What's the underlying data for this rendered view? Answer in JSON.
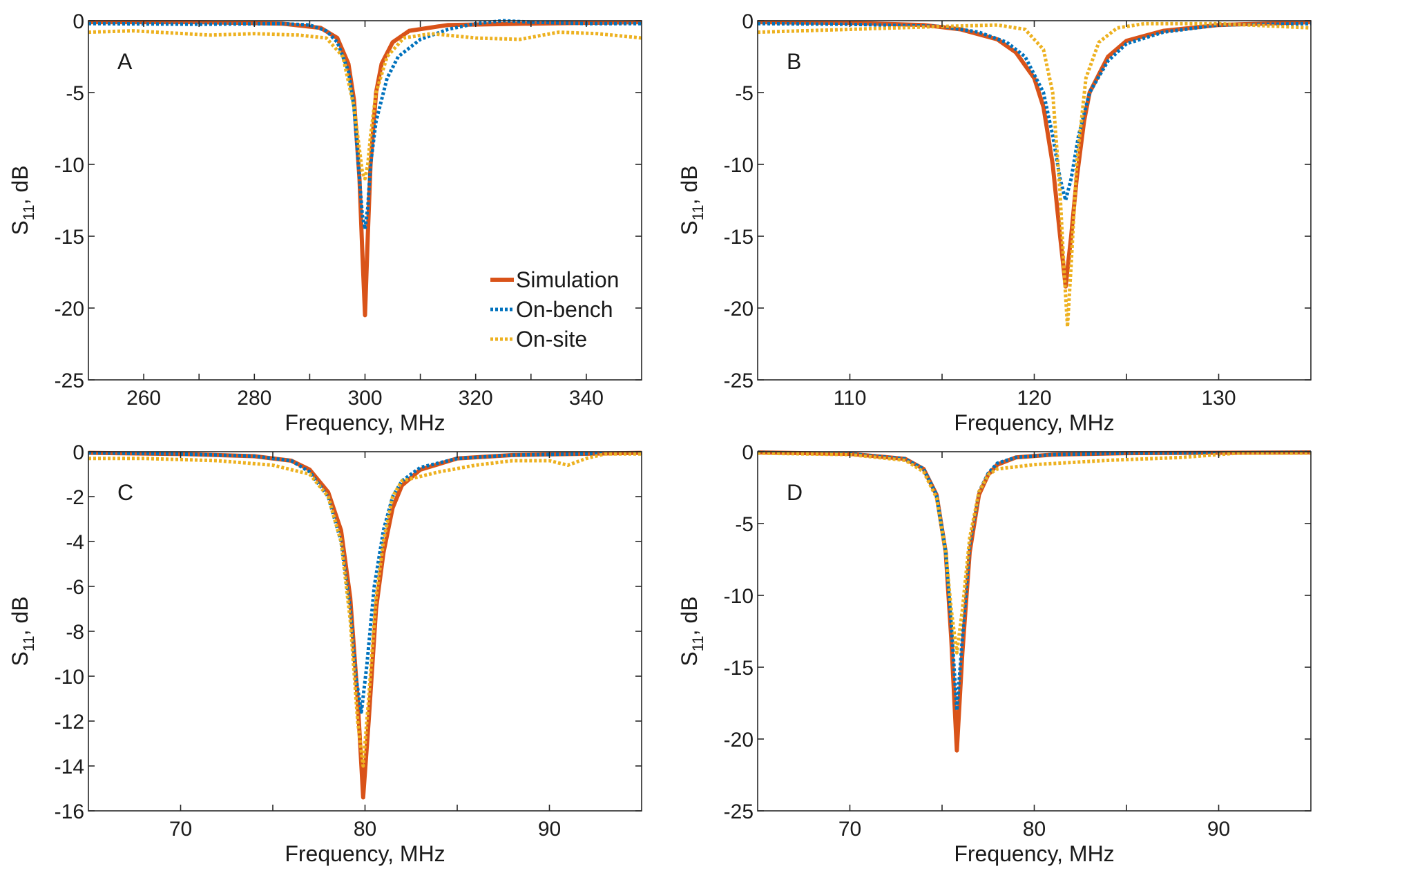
{
  "colors": {
    "simulation": "#D95319",
    "on_bench": "#0072BD",
    "on_site": "#EDB120",
    "axis": "#262626"
  },
  "legend": {
    "position": "inside panel A, lower-right",
    "entries": [
      {
        "key": "simulation",
        "label": "Simulation",
        "style": "solid"
      },
      {
        "key": "on_bench",
        "label": "On-bench",
        "style": "dotted"
      },
      {
        "key": "on_site",
        "label": "On-site",
        "style": "dotted"
      }
    ]
  },
  "chart_data": [
    {
      "id": "A",
      "type": "line",
      "panel_label": "A",
      "xlabel": "Frequency, MHz",
      "ylabel_main": "S",
      "ylabel_sub": "11",
      "ylabel_tail": ", dB",
      "xlim": [
        250,
        350
      ],
      "ylim": [
        -25,
        0
      ],
      "xticks": [
        260,
        280,
        300,
        320,
        340
      ],
      "xticks_minor": [
        250,
        270,
        290,
        310,
        330,
        350
      ],
      "yticks": [
        0,
        -5,
        -10,
        -15,
        -20,
        -25
      ],
      "grid": false,
      "has_legend": true,
      "series": [
        {
          "name": "Simulation",
          "key": "simulation",
          "x": [
            250,
            270,
            285,
            292,
            295,
            297,
            298,
            299,
            299.5,
            300,
            300.5,
            301,
            302,
            303,
            305,
            308,
            315,
            330,
            350
          ],
          "y": [
            -0.1,
            -0.1,
            -0.2,
            -0.5,
            -1.2,
            -3,
            -5.5,
            -11,
            -16,
            -20.5,
            -15,
            -10,
            -5,
            -3,
            -1.5,
            -0.7,
            -0.3,
            -0.2,
            -0.1
          ]
        },
        {
          "name": "On-bench",
          "key": "on_bench",
          "x": [
            250,
            270,
            285,
            290,
            293,
            295,
            297,
            298,
            299,
            299.5,
            300,
            300.5,
            301,
            302,
            304,
            306,
            310,
            315,
            320,
            325,
            330,
            340,
            350
          ],
          "y": [
            -0.2,
            -0.25,
            -0.2,
            -0.3,
            -0.7,
            -1.5,
            -3.5,
            -6,
            -11,
            -13.5,
            -14.5,
            -13,
            -10,
            -7,
            -4,
            -2.5,
            -1.3,
            -0.6,
            -0.2,
            0,
            -0.1,
            -0.2,
            -0.2
          ]
        },
        {
          "name": "On-site",
          "key": "on_site",
          "x": [
            250,
            258,
            265,
            272,
            280,
            288,
            293,
            296,
            298,
            299,
            299.5,
            300,
            300.5,
            301,
            302,
            304,
            307,
            312,
            320,
            328,
            335,
            342,
            350
          ],
          "y": [
            -0.8,
            -0.7,
            -0.85,
            -1.0,
            -0.9,
            -1.0,
            -1.2,
            -2.5,
            -6,
            -9,
            -10.5,
            -11,
            -10,
            -8,
            -5,
            -2.5,
            -1.2,
            -0.9,
            -1.2,
            -1.3,
            -0.8,
            -0.9,
            -1.2
          ]
        }
      ]
    },
    {
      "id": "B",
      "type": "line",
      "panel_label": "B",
      "xlabel": "Frequency, MHz",
      "ylabel_main": "S",
      "ylabel_sub": "11",
      "ylabel_tail": ", dB",
      "xlim": [
        105,
        135
      ],
      "ylim": [
        -25,
        0
      ],
      "xticks": [
        110,
        120,
        130
      ],
      "xticks_minor": [
        105,
        115,
        125,
        135
      ],
      "yticks": [
        0,
        -5,
        -10,
        -15,
        -20,
        -25
      ],
      "grid": false,
      "has_legend": false,
      "series": [
        {
          "name": "Simulation",
          "key": "simulation",
          "x": [
            105,
            110,
            114,
            116,
            118,
            119,
            120,
            120.5,
            121,
            121.4,
            121.7,
            122,
            122.3,
            122.7,
            123,
            124,
            125,
            127,
            130,
            135
          ],
          "y": [
            -0.1,
            -0.15,
            -0.3,
            -0.6,
            -1.3,
            -2.2,
            -4,
            -6,
            -10,
            -15,
            -18.5,
            -15,
            -11,
            -7,
            -5,
            -2.5,
            -1.4,
            -0.7,
            -0.3,
            -0.1
          ]
        },
        {
          "name": "On-bench",
          "key": "on_bench",
          "x": [
            105,
            110,
            115,
            117,
            118.5,
            119.5,
            120.5,
            121,
            121.4,
            121.7,
            122,
            122.4,
            123,
            124,
            125,
            127,
            130,
            135
          ],
          "y": [
            -0.2,
            -0.25,
            -0.4,
            -0.8,
            -1.5,
            -2.5,
            -5,
            -8,
            -11,
            -12.5,
            -11,
            -8,
            -5,
            -2.8,
            -1.6,
            -0.8,
            -0.3,
            -0.2
          ]
        },
        {
          "name": "On-site",
          "key": "on_site",
          "x": [
            105,
            110,
            115,
            118,
            119.5,
            120.5,
            121,
            121.4,
            121.6,
            121.8,
            122,
            122.3,
            122.8,
            123.5,
            124.5,
            126,
            130,
            135
          ],
          "y": [
            -0.8,
            -0.6,
            -0.4,
            -0.3,
            -0.6,
            -2,
            -5,
            -12,
            -17,
            -21.3,
            -17,
            -10,
            -4,
            -1.5,
            -0.5,
            -0.2,
            -0.2,
            -0.5
          ]
        }
      ]
    },
    {
      "id": "C",
      "type": "line",
      "panel_label": "C",
      "xlabel": "Frequency, MHz",
      "ylabel_main": "S",
      "ylabel_sub": "11",
      "ylabel_tail": ", dB",
      "xlim": [
        65,
        95
      ],
      "ylim": [
        -16,
        0
      ],
      "xticks": [
        70,
        80,
        90
      ],
      "xticks_minor": [
        65,
        75,
        85,
        95
      ],
      "yticks": [
        0,
        -2,
        -4,
        -6,
        -8,
        -10,
        -12,
        -14,
        -16
      ],
      "grid": false,
      "has_legend": false,
      "series": [
        {
          "name": "Simulation",
          "key": "simulation",
          "x": [
            65,
            70,
            74,
            76,
            77,
            78,
            78.7,
            79.2,
            79.6,
            79.9,
            80.2,
            80.6,
            81,
            81.5,
            82,
            83,
            85,
            88,
            95
          ],
          "y": [
            -0.05,
            -0.1,
            -0.2,
            -0.4,
            -0.8,
            -1.8,
            -3.5,
            -6.5,
            -11,
            -15.4,
            -12,
            -7,
            -4.5,
            -2.5,
            -1.5,
            -0.8,
            -0.3,
            -0.15,
            -0.05
          ]
        },
        {
          "name": "On-bench",
          "key": "on_bench",
          "x": [
            65,
            70,
            74,
            76,
            77,
            78,
            78.7,
            79.2,
            79.5,
            79.8,
            80.1,
            80.5,
            81,
            81.5,
            82,
            83,
            85,
            88,
            95
          ],
          "y": [
            -0.05,
            -0.1,
            -0.2,
            -0.4,
            -0.9,
            -2,
            -4,
            -7,
            -10,
            -11.6,
            -9.5,
            -6,
            -3.5,
            -2,
            -1.3,
            -0.7,
            -0.3,
            -0.15,
            -0.05
          ]
        },
        {
          "name": "On-site",
          "key": "on_site",
          "x": [
            65,
            68,
            72,
            75,
            77,
            78,
            78.7,
            79.2,
            79.6,
            79.9,
            80.2,
            80.6,
            81,
            81.5,
            82,
            84,
            86,
            88,
            90,
            91,
            92,
            93,
            95
          ],
          "y": [
            -0.3,
            -0.3,
            -0.4,
            -0.6,
            -1,
            -2,
            -4,
            -7.5,
            -12,
            -14,
            -11,
            -6.5,
            -4,
            -2,
            -1.3,
            -0.9,
            -0.6,
            -0.4,
            -0.4,
            -0.6,
            -0.3,
            -0.1,
            -0.1
          ]
        }
      ]
    },
    {
      "id": "D",
      "type": "line",
      "panel_label": "D",
      "xlabel": "Frequency, MHz",
      "ylabel_main": "S",
      "ylabel_sub": "11",
      "ylabel_tail": ", dB",
      "xlim": [
        65,
        95
      ],
      "ylim": [
        -25,
        0
      ],
      "xticks": [
        70,
        80,
        90
      ],
      "xticks_minor": [
        65,
        75,
        85,
        95
      ],
      "yticks": [
        0,
        -5,
        -10,
        -15,
        -20,
        -25
      ],
      "grid": false,
      "has_legend": false,
      "series": [
        {
          "name": "Simulation",
          "key": "simulation",
          "x": [
            65,
            70,
            73,
            74,
            74.7,
            75.2,
            75.5,
            75.8,
            76.1,
            76.5,
            77,
            77.5,
            78,
            79,
            81,
            85,
            95
          ],
          "y": [
            -0.05,
            -0.15,
            -0.5,
            -1.2,
            -3,
            -7,
            -13,
            -20.8,
            -14,
            -7,
            -3,
            -1.6,
            -0.9,
            -0.4,
            -0.2,
            -0.1,
            -0.05
          ]
        },
        {
          "name": "On-bench",
          "key": "on_bench",
          "x": [
            65,
            70,
            73,
            74,
            74.7,
            75.2,
            75.5,
            75.8,
            76.1,
            76.5,
            77,
            77.5,
            78,
            79,
            81,
            85,
            95
          ],
          "y": [
            -0.05,
            -0.15,
            -0.5,
            -1.2,
            -3,
            -7,
            -12,
            -18,
            -13,
            -6.5,
            -2.8,
            -1.5,
            -0.8,
            -0.4,
            -0.2,
            -0.1,
            -0.05
          ]
        },
        {
          "name": "On-site",
          "key": "on_site",
          "x": [
            65,
            70,
            73,
            74,
            74.7,
            75.2,
            75.5,
            75.8,
            76.1,
            76.5,
            77,
            77.5,
            78,
            80,
            84,
            88,
            91,
            95
          ],
          "y": [
            -0.1,
            -0.2,
            -0.6,
            -1.4,
            -3.2,
            -7,
            -11,
            -14,
            -11,
            -6,
            -2.8,
            -1.6,
            -1.2,
            -0.9,
            -0.6,
            -0.4,
            -0.1,
            -0.1
          ]
        }
      ]
    }
  ]
}
